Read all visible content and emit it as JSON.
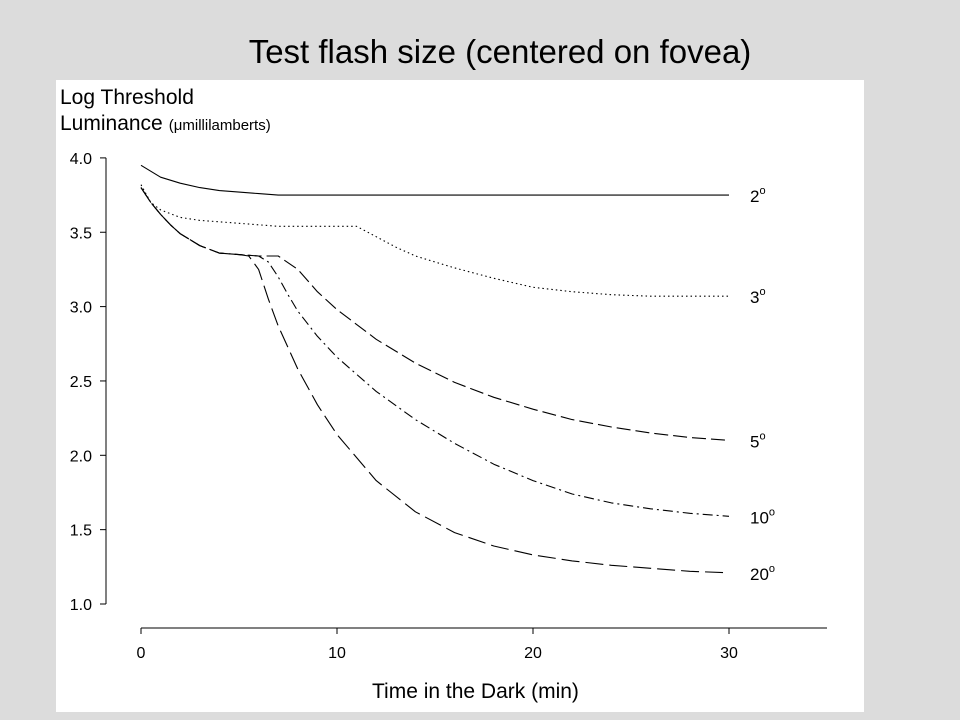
{
  "chart_data": {
    "type": "line",
    "title": "Test flash size (centered on fovea)",
    "ylabel_line1": "Log Threshold",
    "ylabel_line2": "Luminance",
    "ylabel_unit": "(μmillilamberts)",
    "xlabel": "Time in the Dark (min)",
    "xlim": [
      0,
      35
    ],
    "ylim": [
      1.0,
      4.0
    ],
    "xticks": [
      0,
      10,
      20,
      30
    ],
    "yticks": [
      1.0,
      1.5,
      2.0,
      2.5,
      3.0,
      3.5,
      4.0
    ],
    "xtick_labels": [
      "0",
      "10",
      "20",
      "30"
    ],
    "ytick_labels": [
      "1.0",
      "1.5",
      "2.0",
      "2.5",
      "3.0",
      "3.5",
      "4.0"
    ],
    "grid": false,
    "legend": "none",
    "series": [
      {
        "name": "2°",
        "style": "solid",
        "x": [
          0,
          1,
          2,
          3,
          4,
          5,
          6,
          7,
          10,
          15,
          20,
          25,
          30
        ],
        "y": [
          3.95,
          3.87,
          3.83,
          3.8,
          3.78,
          3.77,
          3.76,
          3.75,
          3.75,
          3.75,
          3.75,
          3.75,
          3.75
        ]
      },
      {
        "name": "3°",
        "style": "dotted",
        "x": [
          0,
          0.5,
          1,
          2,
          3,
          4,
          5,
          6,
          7,
          8,
          9,
          10,
          11,
          12,
          13,
          14,
          15,
          16,
          18,
          20,
          22,
          24,
          26,
          28,
          30
        ],
        "y": [
          3.82,
          3.7,
          3.65,
          3.6,
          3.58,
          3.57,
          3.56,
          3.55,
          3.54,
          3.54,
          3.54,
          3.54,
          3.54,
          3.47,
          3.4,
          3.34,
          3.3,
          3.26,
          3.19,
          3.13,
          3.1,
          3.08,
          3.07,
          3.07,
          3.07
        ]
      },
      {
        "name": "5°",
        "style": "long-dash",
        "x": [
          0,
          0.5,
          1,
          1.5,
          2,
          3,
          4,
          5,
          6,
          7,
          8,
          9,
          10,
          12,
          14,
          16,
          18,
          20,
          22,
          24,
          26,
          28,
          30
        ],
        "y": [
          3.8,
          3.7,
          3.62,
          3.55,
          3.49,
          3.41,
          3.36,
          3.35,
          3.34,
          3.34,
          3.25,
          3.1,
          2.98,
          2.78,
          2.62,
          2.49,
          2.39,
          2.31,
          2.24,
          2.19,
          2.15,
          2.12,
          2.1
        ]
      },
      {
        "name": "10°",
        "style": "dash-dot",
        "x": [
          0,
          0.5,
          1,
          1.5,
          2,
          3,
          4,
          5,
          6,
          6.5,
          7,
          7.5,
          8,
          9,
          10,
          12,
          14,
          16,
          18,
          20,
          22,
          24,
          26,
          28,
          30
        ],
        "y": [
          3.8,
          3.7,
          3.62,
          3.55,
          3.49,
          3.41,
          3.36,
          3.35,
          3.34,
          3.3,
          3.2,
          3.08,
          2.97,
          2.8,
          2.66,
          2.43,
          2.24,
          2.08,
          1.94,
          1.83,
          1.74,
          1.68,
          1.64,
          1.61,
          1.59
        ]
      },
      {
        "name": "20°",
        "style": "dashed",
        "x": [
          0,
          0.5,
          1,
          1.5,
          2,
          3,
          4,
          5,
          5.5,
          6,
          6.5,
          7,
          8,
          9,
          10,
          12,
          14,
          16,
          18,
          20,
          22,
          24,
          26,
          28,
          30
        ],
        "y": [
          3.8,
          3.7,
          3.62,
          3.55,
          3.49,
          3.41,
          3.36,
          3.35,
          3.34,
          3.25,
          3.05,
          2.87,
          2.58,
          2.34,
          2.14,
          1.83,
          1.62,
          1.48,
          1.39,
          1.33,
          1.29,
          1.26,
          1.24,
          1.22,
          1.21
        ]
      }
    ]
  }
}
